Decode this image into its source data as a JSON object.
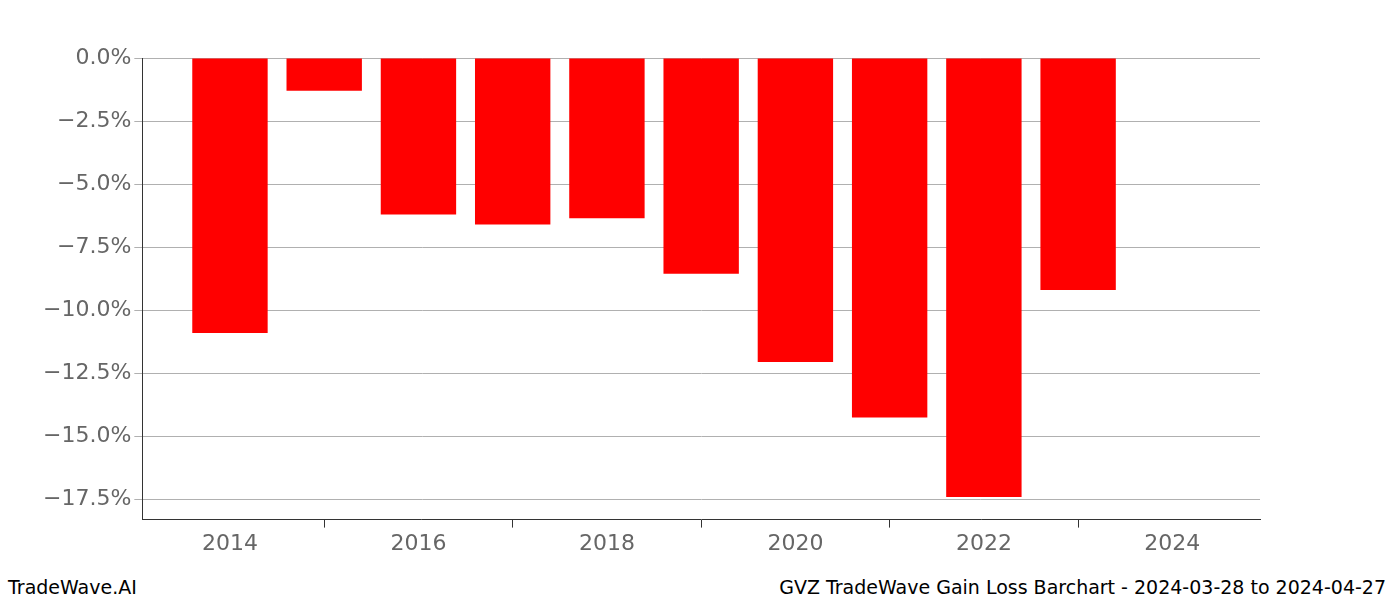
{
  "chart_data": {
    "type": "bar",
    "title": "GVZ TradeWave Gain Loss Barchart - 2024-03-28 to 2024-04-27",
    "annotations": [
      "TradeWave.AI"
    ],
    "x": [
      2014,
      2015,
      2016,
      2017,
      2018,
      2019,
      2020,
      2021,
      2022,
      2023
    ],
    "values": [
      -10.9,
      -1.3,
      -6.2,
      -6.6,
      -6.35,
      -8.55,
      -12.05,
      -14.25,
      -17.4,
      -9.2
    ],
    "color": "#ff0000",
    "xlim": [
      2013.07,
      2024.93
    ],
    "xticks": [
      2014,
      2016,
      2018,
      2020,
      2022,
      2024
    ],
    "ylim": [
      -18.3,
      0
    ],
    "yticks": [
      {
        "value": -17.5,
        "label": "−17.5%"
      },
      {
        "value": -15,
        "label": "−15.0%"
      },
      {
        "value": -12.5,
        "label": "−12.5%"
      },
      {
        "value": -10,
        "label": "−10.0%"
      },
      {
        "value": -7.5,
        "label": "−7.5%"
      },
      {
        "value": -5,
        "label": "−5.0%"
      },
      {
        "value": -2.5,
        "label": "−2.5%"
      },
      {
        "value": 0,
        "label": "0.0%"
      }
    ],
    "grid": true
  }
}
